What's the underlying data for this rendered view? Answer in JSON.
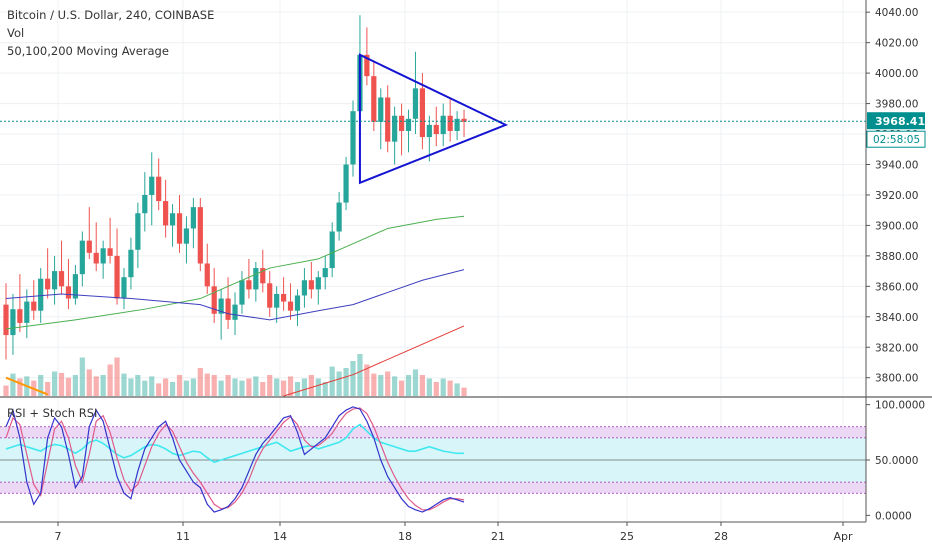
{
  "legend": {
    "title": "Bitcoin / U.S. Dollar, 240, COINBASE",
    "vol": "Vol",
    "ma": "50,100,200 Moving Average",
    "rsi": "RSI + Stoch RSI"
  },
  "colors": {
    "up": "#26a69a",
    "down": "#ef5350",
    "triangle": "#1414d2",
    "ma50": "#4caf50",
    "ma100": "#3f3fbf",
    "ma200": "#e53935",
    "maOrange": "#ff9800",
    "rsiLine": "#40e8f0",
    "stochK": "#3333cc",
    "stochD": "#e05a8a",
    "bandFill": "#d8f6f9",
    "zoneFill": "#ead8f5",
    "priceTag": "#008f8f"
  },
  "chart_data": {
    "type": "candlestick",
    "title": "Bitcoin / U.S. Dollar, 240, COINBASE",
    "price_axis": {
      "ticks": [
        3800,
        3820,
        3840,
        3860,
        3880,
        3900,
        3920,
        3940,
        3960,
        3980,
        4000,
        4020,
        4040
      ],
      "tick_labels": [
        "3800.00",
        "3820.00",
        "3840.00",
        "3860.00",
        "3880.00",
        "3900.00",
        "3920.00",
        "3940.00",
        "3960.00",
        "3980.00",
        "4000.00",
        "4020.00",
        "4040.00"
      ],
      "range": [
        3788,
        4048
      ]
    },
    "rsi_axis": {
      "ticks": [
        0,
        50,
        100
      ],
      "tick_labels": [
        "0.0000",
        "50.0000",
        "100.0000"
      ],
      "range": [
        -6,
        106
      ]
    },
    "time_axis": {
      "labels": [
        "7",
        "11",
        "14",
        "18",
        "21",
        "25",
        "28",
        "Apr"
      ]
    },
    "last_price": "3968.41",
    "countdown": "02:58:05",
    "ohlc": [
      [
        3848,
        3862,
        3812,
        3828
      ],
      [
        3828,
        3855,
        3815,
        3845
      ],
      [
        3845,
        3868,
        3830,
        3836
      ],
      [
        3836,
        3858,
        3826,
        3850
      ],
      [
        3850,
        3864,
        3838,
        3844
      ],
      [
        3844,
        3872,
        3836,
        3865
      ],
      [
        3865,
        3885,
        3852,
        3858
      ],
      [
        3858,
        3880,
        3848,
        3870
      ],
      [
        3870,
        3890,
        3855,
        3860
      ],
      [
        3860,
        3878,
        3845,
        3852
      ],
      [
        3852,
        3874,
        3848,
        3868
      ],
      [
        3868,
        3896,
        3860,
        3890
      ],
      [
        3890,
        3912,
        3878,
        3882
      ],
      [
        3882,
        3902,
        3870,
        3875
      ],
      [
        3875,
        3890,
        3865,
        3885
      ],
      [
        3885,
        3905,
        3875,
        3880
      ],
      [
        3880,
        3898,
        3848,
        3852
      ],
      [
        3852,
        3872,
        3845,
        3866
      ],
      [
        3866,
        3892,
        3858,
        3884
      ],
      [
        3884,
        3915,
        3872,
        3908
      ],
      [
        3908,
        3935,
        3896,
        3920
      ],
      [
        3920,
        3948,
        3900,
        3932
      ],
      [
        3932,
        3944,
        3910,
        3916
      ],
      [
        3916,
        3930,
        3892,
        3900
      ],
      [
        3900,
        3914,
        3886,
        3908
      ],
      [
        3908,
        3920,
        3882,
        3888
      ],
      [
        3888,
        3906,
        3875,
        3898
      ],
      [
        3898,
        3918,
        3885,
        3912
      ],
      [
        3912,
        3918,
        3870,
        3875
      ],
      [
        3875,
        3888,
        3855,
        3860
      ],
      [
        3860,
        3872,
        3836,
        3842
      ],
      [
        3842,
        3858,
        3825,
        3852
      ],
      [
        3852,
        3866,
        3832,
        3838
      ],
      [
        3838,
        3856,
        3828,
        3848
      ],
      [
        3848,
        3870,
        3842,
        3864
      ],
      [
        3864,
        3878,
        3852,
        3858
      ],
      [
        3858,
        3876,
        3850,
        3872
      ],
      [
        3872,
        3884,
        3856,
        3862
      ],
      [
        3862,
        3870,
        3840,
        3846
      ],
      [
        3846,
        3860,
        3836,
        3855
      ],
      [
        3855,
        3866,
        3844,
        3850
      ],
      [
        3850,
        3862,
        3838,
        3844
      ],
      [
        3844,
        3858,
        3834,
        3854
      ],
      [
        3854,
        3872,
        3846,
        3864
      ],
      [
        3864,
        3876,
        3852,
        3858
      ],
      [
        3858,
        3870,
        3848,
        3866
      ],
      [
        3866,
        3880,
        3858,
        3872
      ],
      [
        3872,
        3902,
        3866,
        3896
      ],
      [
        3896,
        3922,
        3890,
        3915
      ],
      [
        3915,
        3945,
        3910,
        3940
      ],
      [
        3940,
        3982,
        3932,
        3975
      ],
      [
        3975,
        4038,
        3968,
        4012
      ],
      [
        4012,
        4030,
        3992,
        3998
      ],
      [
        3998,
        4008,
        3962,
        3968
      ],
      [
        3968,
        3990,
        3950,
        3984
      ],
      [
        3984,
        3992,
        3948,
        3955
      ],
      [
        3955,
        3978,
        3940,
        3972
      ],
      [
        3972,
        3980,
        3946,
        3962
      ],
      [
        3962,
        3976,
        3948,
        3970
      ],
      [
        3970,
        4014,
        3960,
        3990
      ],
      [
        3990,
        4000,
        3950,
        3958
      ],
      [
        3958,
        3972,
        3942,
        3966
      ],
      [
        3966,
        3978,
        3952,
        3960
      ],
      [
        3960,
        3980,
        3952,
        3972
      ],
      [
        3972,
        3984,
        3955,
        3962
      ],
      [
        3962,
        3975,
        3956,
        3970
      ],
      [
        3970,
        3976,
        3958,
        3968
      ]
    ],
    "volume": [
      0.15,
      0.32,
      0.25,
      0.28,
      0.22,
      0.3,
      0.2,
      0.35,
      0.33,
      0.26,
      0.3,
      0.55,
      0.38,
      0.28,
      0.3,
      0.45,
      0.55,
      0.32,
      0.25,
      0.3,
      0.22,
      0.28,
      0.18,
      0.25,
      0.2,
      0.3,
      0.22,
      0.25,
      0.4,
      0.32,
      0.3,
      0.22,
      0.3,
      0.25,
      0.22,
      0.25,
      0.28,
      0.2,
      0.3,
      0.25,
      0.22,
      0.28,
      0.2,
      0.25,
      0.3,
      0.25,
      0.2,
      0.42,
      0.35,
      0.4,
      0.5,
      0.6,
      0.45,
      0.32,
      0.3,
      0.35,
      0.28,
      0.22,
      0.3,
      0.38,
      0.3,
      0.25,
      0.2,
      0.25,
      0.22,
      0.18,
      0.12
    ],
    "ma50": [
      [
        0,
        3832
      ],
      [
        10,
        3838
      ],
      [
        20,
        3845
      ],
      [
        28,
        3852
      ],
      [
        30,
        3856
      ],
      [
        38,
        3872
      ],
      [
        45,
        3878
      ],
      [
        50,
        3888
      ],
      [
        55,
        3898
      ],
      [
        62,
        3904
      ],
      [
        66,
        3906
      ]
    ],
    "ma100": [
      [
        0,
        3852
      ],
      [
        8,
        3855
      ],
      [
        18,
        3852
      ],
      [
        28,
        3848
      ],
      [
        32,
        3842
      ],
      [
        38,
        3838
      ],
      [
        45,
        3844
      ],
      [
        50,
        3848
      ],
      [
        55,
        3856
      ],
      [
        60,
        3864
      ],
      [
        66,
        3871
      ]
    ],
    "ma200": [
      [
        40,
        3788
      ],
      [
        50,
        3802
      ],
      [
        58,
        3818
      ],
      [
        66,
        3834
      ]
    ],
    "ma_orange": [
      [
        0,
        3800
      ],
      [
        6,
        3789
      ]
    ],
    "triangle": {
      "top": [
        51,
        4012
      ],
      "bottom": [
        51,
        3928
      ],
      "apex": [
        72,
        3966
      ]
    },
    "stoch_k": [
      80,
      95,
      70,
      30,
      10,
      20,
      70,
      88,
      80,
      55,
      25,
      35,
      80,
      95,
      85,
      60,
      35,
      20,
      15,
      40,
      60,
      70,
      80,
      85,
      70,
      50,
      40,
      30,
      25,
      10,
      3,
      5,
      8,
      15,
      25,
      40,
      55,
      65,
      72,
      80,
      88,
      90,
      75,
      55,
      60,
      65,
      70,
      80,
      90,
      95,
      98,
      96,
      85,
      70,
      50,
      35,
      25,
      15,
      8,
      5,
      3,
      6,
      10,
      14,
      16,
      14,
      12
    ],
    "stoch_d": [
      70,
      88,
      82,
      55,
      28,
      18,
      48,
      78,
      85,
      70,
      45,
      30,
      55,
      85,
      90,
      75,
      52,
      32,
      22,
      28,
      45,
      62,
      74,
      82,
      76,
      62,
      48,
      38,
      30,
      20,
      10,
      6,
      7,
      12,
      20,
      32,
      48,
      60,
      68,
      76,
      84,
      89,
      82,
      68,
      62,
      63,
      68,
      74,
      84,
      92,
      96,
      97,
      92,
      80,
      64,
      48,
      35,
      24,
      15,
      9,
      5,
      5,
      8,
      12,
      15,
      15,
      14
    ],
    "rsi": [
      60,
      62,
      64,
      62,
      60,
      58,
      62,
      64,
      63,
      60,
      56,
      60,
      66,
      68,
      65,
      60,
      55,
      52,
      54,
      58,
      62,
      64,
      63,
      60,
      56,
      54,
      56,
      58,
      57,
      52,
      48,
      50,
      52,
      54,
      56,
      58,
      60,
      62,
      64,
      66,
      62,
      58,
      60,
      62,
      63,
      60,
      62,
      64,
      66,
      70,
      78,
      82,
      76,
      70,
      66,
      64,
      62,
      60,
      58,
      58,
      60,
      62,
      60,
      58,
      57,
      56,
      56
    ]
  }
}
